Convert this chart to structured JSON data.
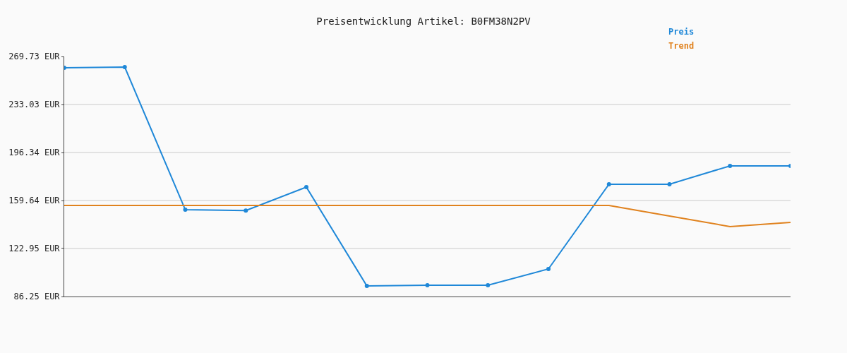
{
  "chart_data": {
    "type": "line",
    "title": "Preisentwicklung Artikel: B0FM38N2PV",
    "categories": [
      null,
      null,
      null,
      null,
      null,
      null,
      null,
      null,
      null,
      null,
      null,
      null,
      null
    ],
    "series": [
      {
        "name": "Preis",
        "color": "#1f88d8",
        "marker": "circle",
        "values": [
          261.1,
          261.6,
          152.6,
          152.0,
          169.9,
          94.4,
          94.9,
          94.9,
          107.3,
          172.1,
          172.1,
          186.1,
          186.1
        ]
      },
      {
        "name": "Trend",
        "color": "#e0821e",
        "marker": "none",
        "values": [
          155.9,
          155.9,
          155.9,
          155.9,
          155.9,
          155.9,
          155.9,
          155.9,
          155.9,
          155.9,
          147.8,
          139.7,
          142.9
        ]
      }
    ],
    "ylim": [
      86.25,
      269.73
    ],
    "yticks": [
      {
        "value": 86.25,
        "label": "86.25 EUR"
      },
      {
        "value": 122.95,
        "label": "122.95 EUR"
      },
      {
        "value": 159.64,
        "label": "159.64 EUR"
      },
      {
        "value": 196.34,
        "label": "196.34 EUR"
      },
      {
        "value": 233.03,
        "label": "233.03 EUR"
      },
      {
        "value": 269.73,
        "label": "269.73 EUR"
      }
    ],
    "grid": "y",
    "legend": "top right",
    "tick_labels": "y",
    "line_style": "solid"
  }
}
